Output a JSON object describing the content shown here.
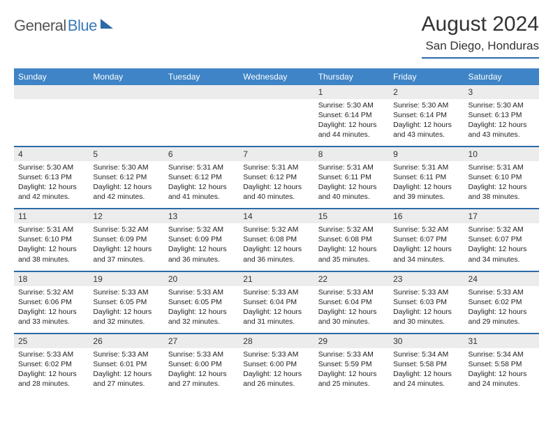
{
  "logo": {
    "part1": "General",
    "part2": "Blue"
  },
  "title": "August 2024",
  "location": "San Diego, Honduras",
  "colors": {
    "header_bg": "#3e84c6",
    "rule": "#2b6aa8",
    "daynum_bg": "#ececec",
    "text": "#333333",
    "background": "#ffffff"
  },
  "calendar": {
    "columns": [
      "Sunday",
      "Monday",
      "Tuesday",
      "Wednesday",
      "Thursday",
      "Friday",
      "Saturday"
    ],
    "weeks": [
      [
        {
          "blank": true
        },
        {
          "blank": true
        },
        {
          "blank": true
        },
        {
          "blank": true
        },
        {
          "day": "1",
          "sunrise": "5:30 AM",
          "sunset": "6:14 PM",
          "daylight": "12 hours and 44 minutes."
        },
        {
          "day": "2",
          "sunrise": "5:30 AM",
          "sunset": "6:14 PM",
          "daylight": "12 hours and 43 minutes."
        },
        {
          "day": "3",
          "sunrise": "5:30 AM",
          "sunset": "6:13 PM",
          "daylight": "12 hours and 43 minutes."
        }
      ],
      [
        {
          "day": "4",
          "sunrise": "5:30 AM",
          "sunset": "6:13 PM",
          "daylight": "12 hours and 42 minutes."
        },
        {
          "day": "5",
          "sunrise": "5:30 AM",
          "sunset": "6:12 PM",
          "daylight": "12 hours and 42 minutes."
        },
        {
          "day": "6",
          "sunrise": "5:31 AM",
          "sunset": "6:12 PM",
          "daylight": "12 hours and 41 minutes."
        },
        {
          "day": "7",
          "sunrise": "5:31 AM",
          "sunset": "6:12 PM",
          "daylight": "12 hours and 40 minutes."
        },
        {
          "day": "8",
          "sunrise": "5:31 AM",
          "sunset": "6:11 PM",
          "daylight": "12 hours and 40 minutes."
        },
        {
          "day": "9",
          "sunrise": "5:31 AM",
          "sunset": "6:11 PM",
          "daylight": "12 hours and 39 minutes."
        },
        {
          "day": "10",
          "sunrise": "5:31 AM",
          "sunset": "6:10 PM",
          "daylight": "12 hours and 38 minutes."
        }
      ],
      [
        {
          "day": "11",
          "sunrise": "5:31 AM",
          "sunset": "6:10 PM",
          "daylight": "12 hours and 38 minutes."
        },
        {
          "day": "12",
          "sunrise": "5:32 AM",
          "sunset": "6:09 PM",
          "daylight": "12 hours and 37 minutes."
        },
        {
          "day": "13",
          "sunrise": "5:32 AM",
          "sunset": "6:09 PM",
          "daylight": "12 hours and 36 minutes."
        },
        {
          "day": "14",
          "sunrise": "5:32 AM",
          "sunset": "6:08 PM",
          "daylight": "12 hours and 36 minutes."
        },
        {
          "day": "15",
          "sunrise": "5:32 AM",
          "sunset": "6:08 PM",
          "daylight": "12 hours and 35 minutes."
        },
        {
          "day": "16",
          "sunrise": "5:32 AM",
          "sunset": "6:07 PM",
          "daylight": "12 hours and 34 minutes."
        },
        {
          "day": "17",
          "sunrise": "5:32 AM",
          "sunset": "6:07 PM",
          "daylight": "12 hours and 34 minutes."
        }
      ],
      [
        {
          "day": "18",
          "sunrise": "5:32 AM",
          "sunset": "6:06 PM",
          "daylight": "12 hours and 33 minutes."
        },
        {
          "day": "19",
          "sunrise": "5:33 AM",
          "sunset": "6:05 PM",
          "daylight": "12 hours and 32 minutes."
        },
        {
          "day": "20",
          "sunrise": "5:33 AM",
          "sunset": "6:05 PM",
          "daylight": "12 hours and 32 minutes."
        },
        {
          "day": "21",
          "sunrise": "5:33 AM",
          "sunset": "6:04 PM",
          "daylight": "12 hours and 31 minutes."
        },
        {
          "day": "22",
          "sunrise": "5:33 AM",
          "sunset": "6:04 PM",
          "daylight": "12 hours and 30 minutes."
        },
        {
          "day": "23",
          "sunrise": "5:33 AM",
          "sunset": "6:03 PM",
          "daylight": "12 hours and 30 minutes."
        },
        {
          "day": "24",
          "sunrise": "5:33 AM",
          "sunset": "6:02 PM",
          "daylight": "12 hours and 29 minutes."
        }
      ],
      [
        {
          "day": "25",
          "sunrise": "5:33 AM",
          "sunset": "6:02 PM",
          "daylight": "12 hours and 28 minutes."
        },
        {
          "day": "26",
          "sunrise": "5:33 AM",
          "sunset": "6:01 PM",
          "daylight": "12 hours and 27 minutes."
        },
        {
          "day": "27",
          "sunrise": "5:33 AM",
          "sunset": "6:00 PM",
          "daylight": "12 hours and 27 minutes."
        },
        {
          "day": "28",
          "sunrise": "5:33 AM",
          "sunset": "6:00 PM",
          "daylight": "12 hours and 26 minutes."
        },
        {
          "day": "29",
          "sunrise": "5:33 AM",
          "sunset": "5:59 PM",
          "daylight": "12 hours and 25 minutes."
        },
        {
          "day": "30",
          "sunrise": "5:34 AM",
          "sunset": "5:58 PM",
          "daylight": "12 hours and 24 minutes."
        },
        {
          "day": "31",
          "sunrise": "5:34 AM",
          "sunset": "5:58 PM",
          "daylight": "12 hours and 24 minutes."
        }
      ]
    ]
  },
  "labels": {
    "sunrise": "Sunrise:",
    "sunset": "Sunset:",
    "daylight": "Daylight:"
  }
}
